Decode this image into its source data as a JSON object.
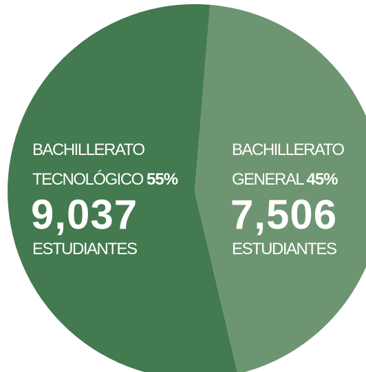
{
  "chart_data": {
    "type": "pie",
    "categories": [
      "BACHILLERATO TECNOLÓGICO",
      "BACHILLERATO GENERAL"
    ],
    "values": [
      55,
      45
    ],
    "value_labels": [
      "55%",
      "45%"
    ],
    "colors": [
      "#437a4f",
      "#6e9572"
    ],
    "counts": [
      9037,
      7506
    ],
    "count_labels": [
      "9,037",
      "7,506"
    ],
    "count_unit": "ESTUDIANTES"
  }
}
